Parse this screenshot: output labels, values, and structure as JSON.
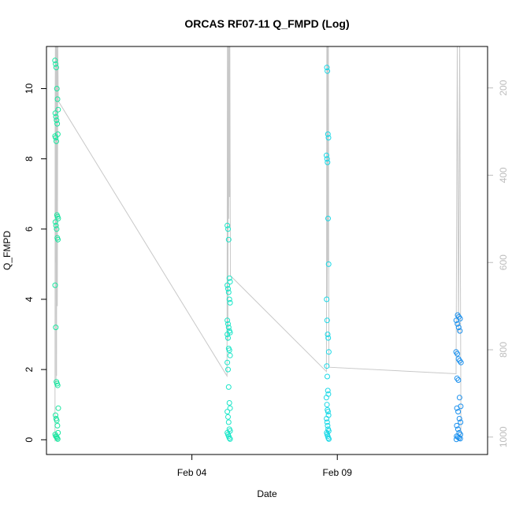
{
  "chart_data": {
    "type": "scatter",
    "title": "ORCAS RF07-11 Q_FMPD (Log)",
    "xlabel": "Date",
    "ylabel": "Q_FMPD",
    "x_ticks": [
      {
        "value": "2016-02-04",
        "label": "Feb 04"
      },
      {
        "value": "2016-02-09",
        "label": "Feb 09"
      }
    ],
    "xlim": [
      "2016-01-30T00:00",
      "2016-02-14T04:00"
    ],
    "ylim": [
      -0.42,
      11.2
    ],
    "y_ticks": [
      0,
      2,
      4,
      6,
      8,
      10
    ],
    "y2_label": "",
    "y2_ticks": [
      200,
      400,
      600,
      800,
      1000
    ],
    "y2_reversed": true,
    "y2lim": [
      1040,
      105
    ],
    "grid": false,
    "colors": {
      "points_start": "#1ae6a0",
      "points_end": "#1a8cf0",
      "pressure_line": "#c8c8c8",
      "tick_right": "#bdbdbd"
    },
    "series": [
      {
        "flight_start": "2016-01-30T07:00",
        "flight_end": "2016-01-30T09:45",
        "color": "#1ae6a0",
        "values": [
          10.8,
          10.7,
          10.6,
          10.0,
          9.7,
          9.4,
          9.3,
          9.2,
          9.1,
          9.0,
          8.7,
          8.65,
          8.6,
          8.5,
          6.4,
          6.35,
          6.3,
          6.2,
          6.1,
          6.0,
          5.75,
          5.7,
          4.4,
          3.2,
          1.65,
          1.6,
          1.55,
          0.9,
          0.7,
          0.6,
          0.55,
          0.4,
          0.2,
          0.15,
          0.1,
          0.08,
          0.05,
          0.02
        ]
      },
      {
        "flight_start": "2016-02-05T05:00",
        "flight_end": "2016-02-05T07:45",
        "color": "#1ae6c8",
        "values": [
          6.1,
          6.0,
          5.7,
          4.6,
          4.5,
          4.4,
          4.3,
          4.2,
          4.0,
          3.9,
          3.4,
          3.3,
          3.2,
          3.1,
          3.05,
          3.0,
          2.9,
          2.6,
          2.55,
          2.4,
          2.2,
          2.0,
          1.5,
          1.05,
          0.9,
          0.8,
          0.65,
          0.5,
          0.3,
          0.25,
          0.2,
          0.15,
          0.1,
          0.05,
          0.02
        ]
      },
      {
        "flight_start": "2016-02-08T15:00",
        "flight_end": "2016-02-08T17:00",
        "color": "#1ad8e6",
        "values": [
          10.6,
          10.5,
          8.7,
          8.6,
          8.1,
          8.0,
          7.9,
          6.3,
          5.0,
          4.0,
          3.4,
          3.0,
          2.9,
          2.5,
          2.1,
          1.8,
          1.4,
          1.3,
          1.2,
          1.0,
          0.85,
          0.8,
          0.7,
          0.6,
          0.5,
          0.4,
          0.3,
          0.25,
          0.2,
          0.15,
          0.1,
          0.05,
          0.02
        ]
      },
      {
        "flight_start": "2016-02-13T02:00",
        "flight_end": "2016-02-13T06:00",
        "color": "#1a90ee",
        "values": [
          3.55,
          3.5,
          3.45,
          3.4,
          3.3,
          3.2,
          3.1,
          2.5,
          2.45,
          2.3,
          2.25,
          2.2,
          1.75,
          1.7,
          1.2,
          0.95,
          0.9,
          0.8,
          0.6,
          0.5,
          0.4,
          0.3,
          0.2,
          0.15,
          0.1,
          0.08,
          0.05,
          0.03,
          0.01
        ]
      }
    ],
    "pressure_line": {
      "color": "#c8c8c8",
      "points": [
        {
          "t": "2016-01-30T07:00",
          "p": 1010
        },
        {
          "t": "2016-01-30T07:10",
          "p": 260
        },
        {
          "t": "2016-01-30T07:20",
          "p": 105
        },
        {
          "t": "2016-01-30T07:30",
          "p": 600
        },
        {
          "t": "2016-01-30T07:40",
          "p": 105
        },
        {
          "t": "2016-01-30T07:50",
          "p": 880
        },
        {
          "t": "2016-01-30T08:00",
          "p": 105
        },
        {
          "t": "2016-01-30T08:20",
          "p": 860
        },
        {
          "t": "2016-01-30T08:40",
          "p": 105
        },
        {
          "t": "2016-01-30T09:00",
          "p": 700
        },
        {
          "t": "2016-01-30T09:20",
          "p": 105
        },
        {
          "t": "2016-01-30T09:45",
          "p": 230
        },
        {
          "t": "2016-02-05T05:00",
          "p": 860
        },
        {
          "t": "2016-02-05T05:20",
          "p": 105
        },
        {
          "t": "2016-02-05T05:40",
          "p": 780
        },
        {
          "t": "2016-02-05T06:00",
          "p": 105
        },
        {
          "t": "2016-02-05T06:20",
          "p": 500
        },
        {
          "t": "2016-02-05T06:40",
          "p": 105
        },
        {
          "t": "2016-02-05T07:00",
          "p": 450
        },
        {
          "t": "2016-02-05T07:20",
          "p": 105
        },
        {
          "t": "2016-02-05T07:45",
          "p": 630
        },
        {
          "t": "2016-02-08T15:00",
          "p": 850
        },
        {
          "t": "2016-02-08T15:20",
          "p": 105
        },
        {
          "t": "2016-02-08T15:40",
          "p": 680
        },
        {
          "t": "2016-02-08T16:00",
          "p": 105
        },
        {
          "t": "2016-02-08T16:20",
          "p": 600
        },
        {
          "t": "2016-02-08T16:40",
          "p": 105
        },
        {
          "t": "2016-02-08T17:00",
          "p": 840
        },
        {
          "t": "2016-02-13T02:00",
          "p": 855
        },
        {
          "t": "2016-02-13T03:00",
          "p": 105
        },
        {
          "t": "2016-02-13T04:00",
          "p": 760
        },
        {
          "t": "2016-02-13T05:00",
          "p": 105
        },
        {
          "t": "2016-02-13T06:00",
          "p": 1005
        }
      ]
    }
  }
}
